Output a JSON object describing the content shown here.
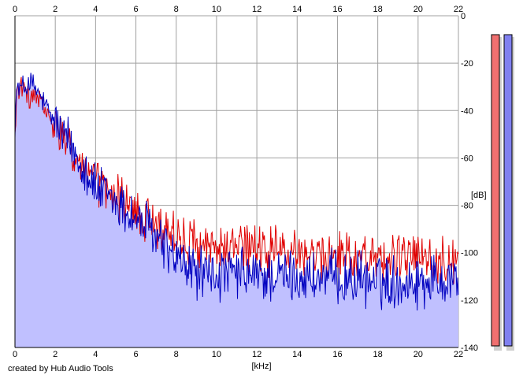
{
  "chart_data": {
    "type": "line",
    "xlabel": "[kHz]",
    "ylabel": "[dB]",
    "xlim": [
      0,
      22
    ],
    "ylim": [
      -140,
      0
    ],
    "x_ticks": [
      "0",
      "2",
      "4",
      "6",
      "8",
      "10",
      "12",
      "14",
      "16",
      "18",
      "20",
      "22"
    ],
    "y_ticks": [
      "0",
      "-20",
      "-40",
      "-60",
      "-80",
      "-100",
      "-120",
      "-140"
    ],
    "grid": true,
    "series": [
      {
        "color": "#e00000",
        "x": [
          0,
          0.1,
          0.25,
          0.5,
          0.75,
          1,
          1.25,
          1.5,
          1.75,
          2,
          2.5,
          3,
          3.5,
          4,
          4.5,
          5,
          5.5,
          6,
          6.5,
          7,
          7.5,
          8,
          8.5,
          9,
          9.5,
          10,
          11,
          12,
          13,
          14,
          15,
          16,
          17,
          18,
          19,
          20,
          21,
          22
        ],
        "values": [
          -50,
          -32,
          -29,
          -33,
          -35,
          -34,
          -36,
          -40,
          -45,
          -48,
          -54,
          -60,
          -65,
          -70,
          -74,
          -77,
          -80,
          -84,
          -86,
          -88,
          -90,
          -93,
          -95,
          -96,
          -97,
          -98,
          -98,
          -99,
          -100,
          -100,
          -101,
          -101,
          -101,
          -102,
          -102,
          -102,
          -103,
          -104
        ]
      },
      {
        "color": "#0000c0",
        "x": [
          0,
          0.1,
          0.25,
          0.5,
          0.75,
          1,
          1.25,
          1.5,
          1.75,
          2,
          2.5,
          3,
          3.5,
          4,
          4.5,
          5,
          5.5,
          6,
          6.5,
          7,
          7.5,
          8,
          8.5,
          9,
          9.5,
          10,
          11,
          12,
          13,
          14,
          15,
          16,
          17,
          18,
          19,
          20,
          21,
          22
        ],
        "values": [
          -45,
          -30,
          -31,
          -30,
          -28,
          -31,
          -34,
          -38,
          -42,
          -45,
          -52,
          -58,
          -64,
          -73,
          -76,
          -79,
          -82,
          -86,
          -89,
          -93,
          -98,
          -103,
          -106,
          -108,
          -109,
          -110,
          -109,
          -110,
          -110,
          -110,
          -111,
          -111,
          -111,
          -112,
          -112,
          -112,
          -111,
          -110
        ]
      }
    ],
    "fill_color": "#c0c0ff"
  },
  "meters": [
    {
      "color": "#f07070",
      "level": 0.99
    },
    {
      "color": "#8080f0",
      "level": 0.99
    }
  ],
  "credit": "created by Hub Audio Tools"
}
